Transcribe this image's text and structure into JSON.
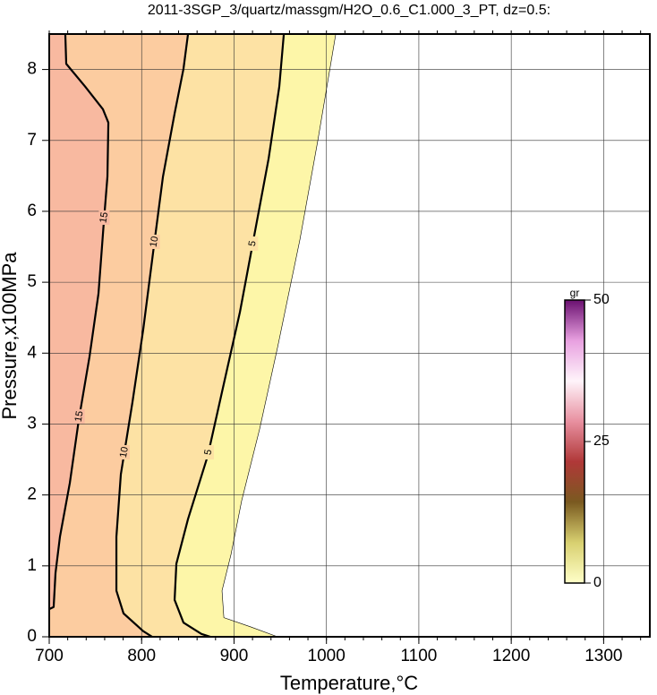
{
  "chart_data": {
    "type": "contour",
    "title": "2011-3SGP_3/quartz/massgm/H2O_0.6_C1.000_3_PT, dz=0.5:",
    "xlabel": "Temperature,°C",
    "ylabel": "Pressure,x100MPa",
    "xlim": [
      700,
      1350
    ],
    "ylim": [
      0,
      8.5
    ],
    "xticks": [
      700,
      800,
      900,
      1000,
      1100,
      1200,
      1300
    ],
    "yticks": [
      0,
      1,
      2,
      3,
      4,
      5,
      6,
      7,
      8
    ],
    "grid": true,
    "extent": {
      "color": "#fdf6a8",
      "x": [
        1010.1,
        990.7,
        971.3,
        947.1,
        927.7,
        908.3,
        896.7,
        887.0,
        889.0,
        918.0,
        947.1
      ],
      "y": [
        8.5,
        7.0,
        5.6,
        4.08,
        2.93,
        1.92,
        1.16,
        0.65,
        0.27,
        0.14,
        0
      ]
    },
    "contours": [
      {
        "level": 5,
        "color": "#fde2a4",
        "x": [
          953.9,
          949.0,
          937.4,
          922.9,
          906.4,
          889.0,
          871.5,
          850.2,
          837.6,
          835.7,
          845.3,
          864.7,
          874.4
        ],
        "y": [
          8.5,
          7.76,
          6.74,
          5.73,
          4.58,
          3.57,
          2.55,
          1.66,
          1.03,
          0.52,
          0.2,
          0.04,
          0
        ]
      },
      {
        "level": 10,
        "color": "#fccca0",
        "x": [
          850.2,
          845.3,
          835.7,
          823.1,
          813.4,
          801.7,
          790.1,
          777.5,
          772.7,
          772.7,
          780.4,
          801.7,
          811.4
        ],
        "y": [
          8.5,
          8.01,
          7.38,
          6.49,
          5.52,
          4.33,
          3.31,
          2.29,
          1.41,
          0.65,
          0.33,
          0.08,
          0
        ]
      },
      {
        "level": 15,
        "color": "#f8b9a0",
        "x": [
          717.4,
          718.4,
          738.8,
          758.1,
          764.0,
          763.0,
          759.1,
          753.3,
          743.6,
          732.0,
          722.3,
          711.6,
          706.8,
          704.8,
          700
        ],
        "y": [
          8.5,
          8.08,
          7.76,
          7.44,
          7.25,
          6.49,
          5.85,
          4.84,
          3.95,
          3.06,
          2.17,
          1.41,
          0.9,
          0.42,
          0.39
        ]
      }
    ],
    "colorbar": {
      "label": "gr",
      "lim": [
        0,
        50
      ],
      "ticks": [
        0,
        25,
        50
      ],
      "colors": [
        "#ffffc8",
        "#d8d070",
        "#7a5a20",
        "#b03838",
        "#e890a0",
        "#fff4fa",
        "#e8a0e0",
        "#6a1070"
      ]
    }
  }
}
